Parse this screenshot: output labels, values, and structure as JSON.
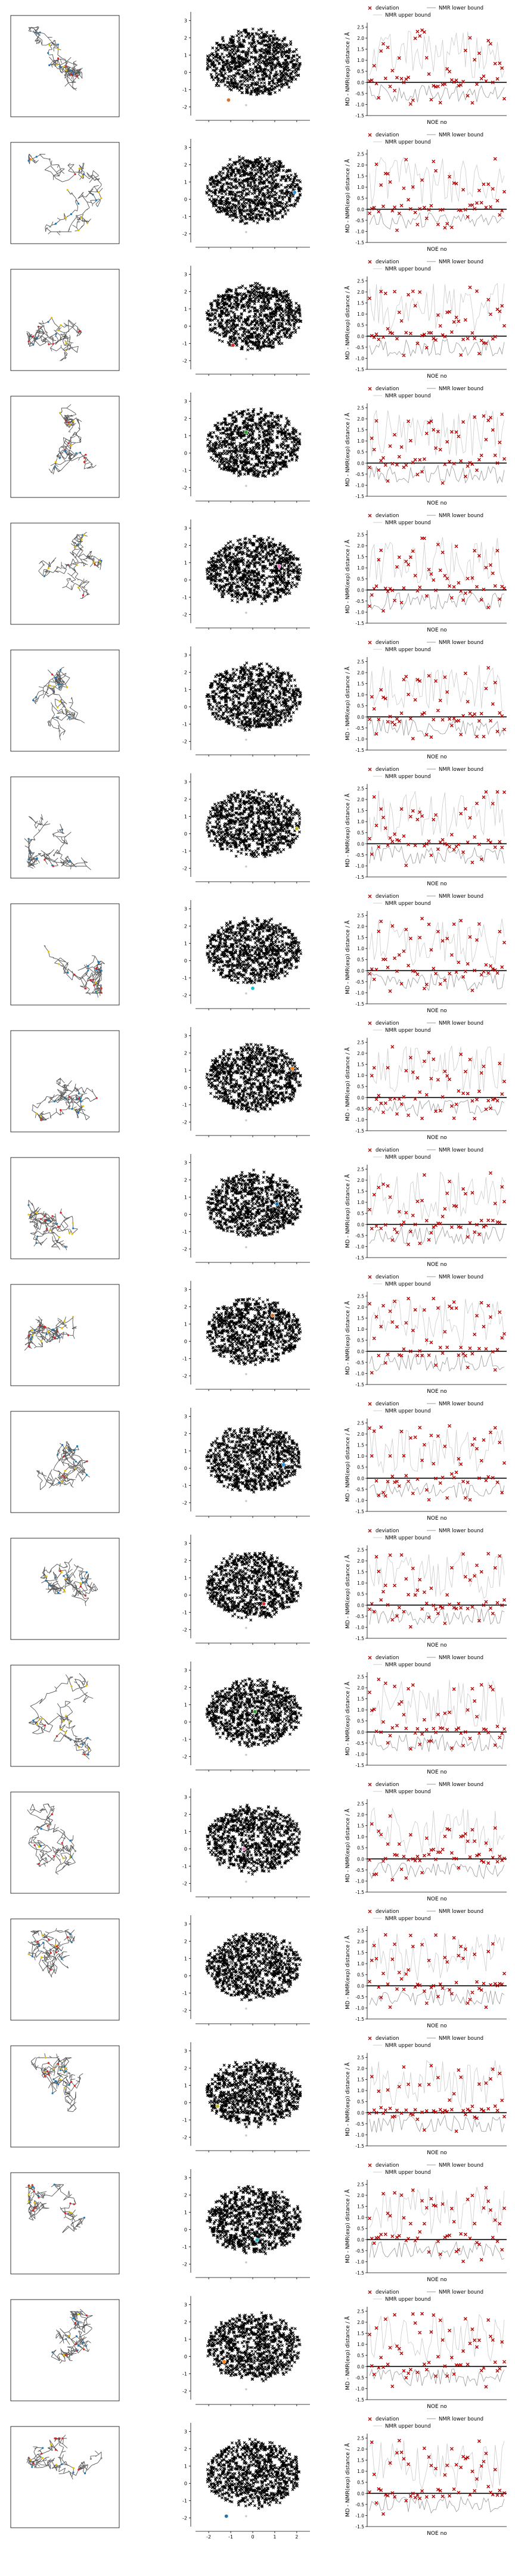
{
  "colors": {
    "deviation_marker": "#b40000",
    "lower_bound_line": "#999999",
    "upper_bound_line": "#cccccc",
    "embedding_cloud": "#000000",
    "axis": "#000000",
    "highlight": [
      "#e07020",
      "#2a8fd6",
      "#d03030",
      "#2ca02c",
      "#e377c2",
      "#7f7f7f",
      "#bcbd22",
      "#17becf",
      "#ff7f0e",
      "#1f77b4"
    ]
  },
  "chart_data": {
    "type": "grid",
    "n_rows": 20,
    "layout_columns": [
      "structure",
      "embedding-scatter",
      "noe-deviation"
    ],
    "embedding": {
      "type": "scatter",
      "xticks": [
        "-2",
        "-1",
        "0",
        "1",
        "2"
      ],
      "yticks": [
        "3",
        "2",
        "1",
        "0",
        "-1",
        "-2"
      ],
      "xlim": [
        -2.6,
        2.6
      ],
      "ylim": [
        -2.5,
        3.5
      ],
      "highlight_points": [
        {
          "x": -1.1,
          "y": -1.6
        },
        {
          "x": 1.9,
          "y": 0.4
        },
        {
          "x": -0.9,
          "y": -1.1
        },
        {
          "x": -0.3,
          "y": 1.2
        },
        {
          "x": 1.2,
          "y": 0.8
        },
        {
          "x": -0.5,
          "y": -1.2
        },
        {
          "x": 2.0,
          "y": 0.3
        },
        {
          "x": 0.0,
          "y": -1.6
        },
        {
          "x": 1.8,
          "y": 1.1
        },
        {
          "x": 1.1,
          "y": 0.6
        },
        {
          "x": 0.9,
          "y": 1.5
        },
        {
          "x": 1.4,
          "y": 0.2
        },
        {
          "x": 0.5,
          "y": -0.5
        },
        {
          "x": 0.1,
          "y": 0.6
        },
        {
          "x": -0.4,
          "y": 0.0
        },
        {
          "x": -1.0,
          "y": 0.8
        },
        {
          "x": -1.6,
          "y": -0.2
        },
        {
          "x": 0.2,
          "y": -0.6
        },
        {
          "x": -1.3,
          "y": -0.3
        },
        {
          "x": -1.2,
          "y": -1.9
        }
      ]
    },
    "noe": {
      "type": "scatter",
      "xlabel": "NOE no",
      "ylabel": "MD - NMR(exp) distance / Å",
      "legend": [
        "deviation",
        "NMR lower bound",
        "NMR upper bound"
      ],
      "legend_placement": "top",
      "yticks": [
        "2.5",
        "2.0",
        "1.5",
        "1.0",
        "0.5",
        "0.0",
        "-0.5",
        "-1.0",
        "-1.5"
      ],
      "ylim": [
        -1.5,
        2.7
      ],
      "n_noes": 60
    }
  }
}
